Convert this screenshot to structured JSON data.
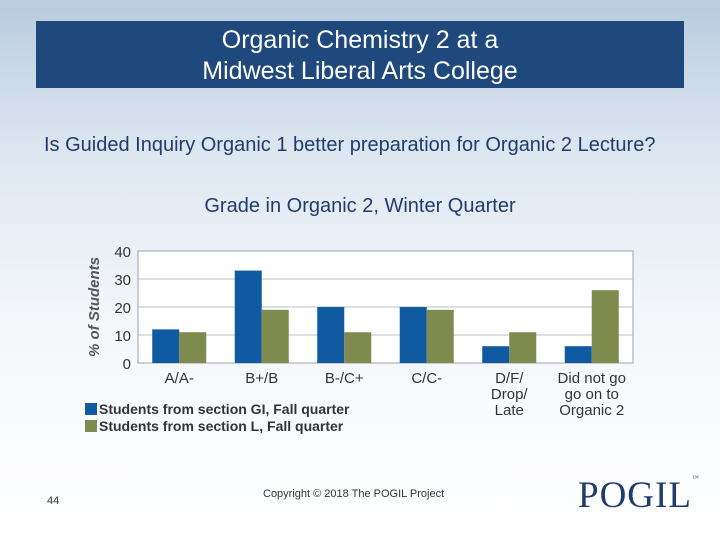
{
  "slide": {
    "title_line1": "Organic Chemistry 2 at a",
    "title_line2": "Midwest Liberal Arts College",
    "question": "Is Guided Inquiry Organic 1 better preparation for Organic 2 Lecture?",
    "chart_subtitle": "Grade in Organic 2, Winter Quarter",
    "slide_number": "44",
    "copyright": "Copyright © 2018 The POGIL Project",
    "logo_text": "POGIL",
    "logo_tm": "™"
  },
  "chart_data": {
    "type": "bar",
    "title": "Grade in Organic 2, Winter Quarter",
    "ylabel": "% of Students",
    "xlabel": "",
    "ylim": [
      0,
      40
    ],
    "yticks": [
      0,
      10,
      20,
      30,
      40
    ],
    "grid": true,
    "legend": "bottom-left",
    "categories": [
      [
        "A/A-"
      ],
      [
        "B+/B"
      ],
      [
        "B-/C+"
      ],
      [
        "C/C-"
      ],
      [
        "D/F/",
        "Drop/",
        "Late"
      ],
      [
        "Did not go",
        "go on to",
        "Organic 2"
      ]
    ],
    "series": [
      {
        "name": "Students from section GI, Fall quarter",
        "color": "#0f5aa0",
        "values": [
          12,
          33,
          20,
          20,
          6,
          6
        ]
      },
      {
        "name": "Students from section L, Fall quarter",
        "color": "#7f8a4f",
        "values": [
          11,
          19,
          11,
          19,
          11,
          26
        ]
      }
    ]
  }
}
